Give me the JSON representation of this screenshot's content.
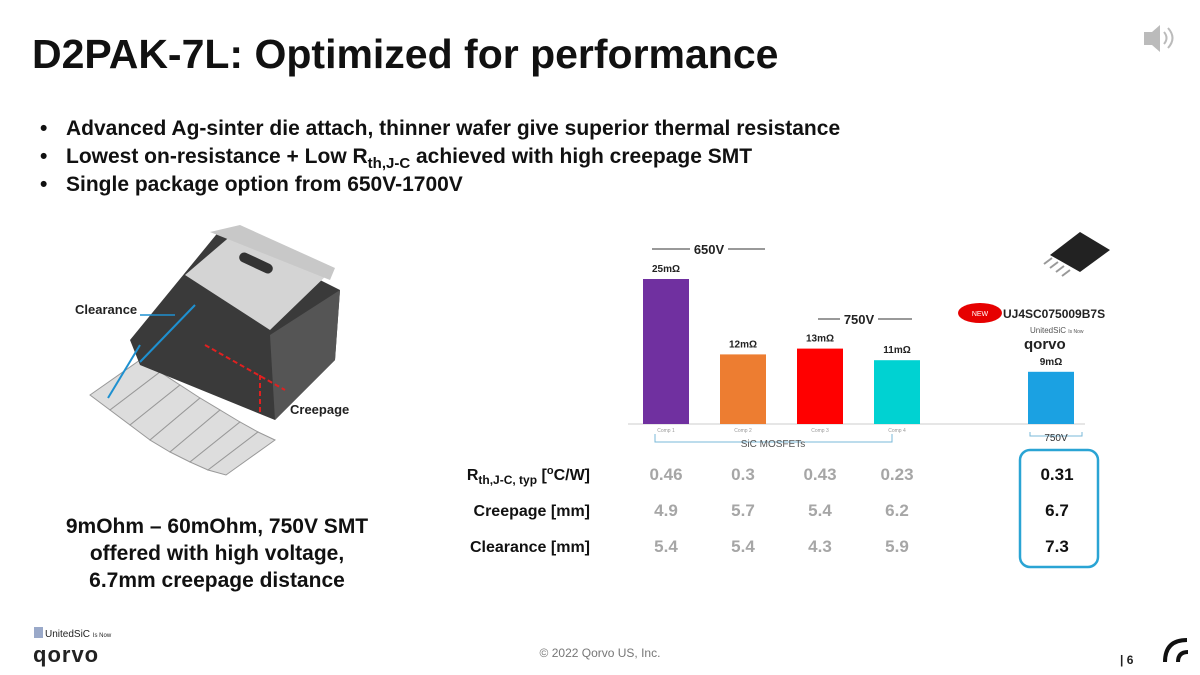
{
  "slide": {
    "title": "D2PAK-7L: Optimized for performance",
    "bullets": [
      "Advanced Ag-sinter die attach, thinner wafer give superior thermal resistance",
      [
        "Lowest on-resistance + Low R",
        "th,J-C",
        " achieved with high creepage SMT"
      ],
      "Single package option from 650V-1700V"
    ],
    "package": {
      "clearance_label": "Clearance",
      "creepage_label": "Creepage"
    },
    "summary": [
      "9mOhm – 60mOhm, 750V SMT",
      "offered with high voltage,",
      "6.7mm creepage distance"
    ],
    "footer": {
      "copyright": "© 2022 Qorvo US, Inc.",
      "page": "| 6",
      "logo_brand": "UnitedSiC",
      "logo_note": "Is Now",
      "logo": "qorvo"
    }
  },
  "chart_data": {
    "type": "bar",
    "categories": [
      "Comp 1",
      "Comp 2",
      "Comp 3",
      "Comp 4",
      "UJ4SC075009B7S"
    ],
    "values": [
      25,
      12,
      13,
      11,
      9
    ],
    "value_labels": [
      "25mΩ",
      "12mΩ",
      "13mΩ",
      "11mΩ",
      "9mΩ"
    ],
    "colors": [
      "#7030a0",
      "#ed7d31",
      "#ff0000",
      "#00d2d2",
      "#1ba1e2"
    ],
    "groups": [
      "650V",
      "750V"
    ],
    "group_caption": "SiC MOSFETs",
    "highlight_label": "750V",
    "badge": "NEW",
    "badge_brand": "UnitedSiC",
    "badge_note": "Is Now",
    "badge_logo": "qorvo"
  },
  "table": {
    "rows": [
      {
        "label": [
          "R",
          "th,J-C, typ",
          " [",
          "o",
          "C/W]"
        ],
        "values": [
          0.46,
          0.3,
          0.43,
          0.23,
          0.31
        ]
      },
      {
        "label": "Creepage [mm]",
        "values": [
          4.9,
          5.7,
          5.4,
          6.2,
          6.7
        ]
      },
      {
        "label": "Clearance [mm]",
        "values": [
          5.4,
          5.4,
          4.3,
          5.9,
          7.3
        ]
      }
    ]
  }
}
